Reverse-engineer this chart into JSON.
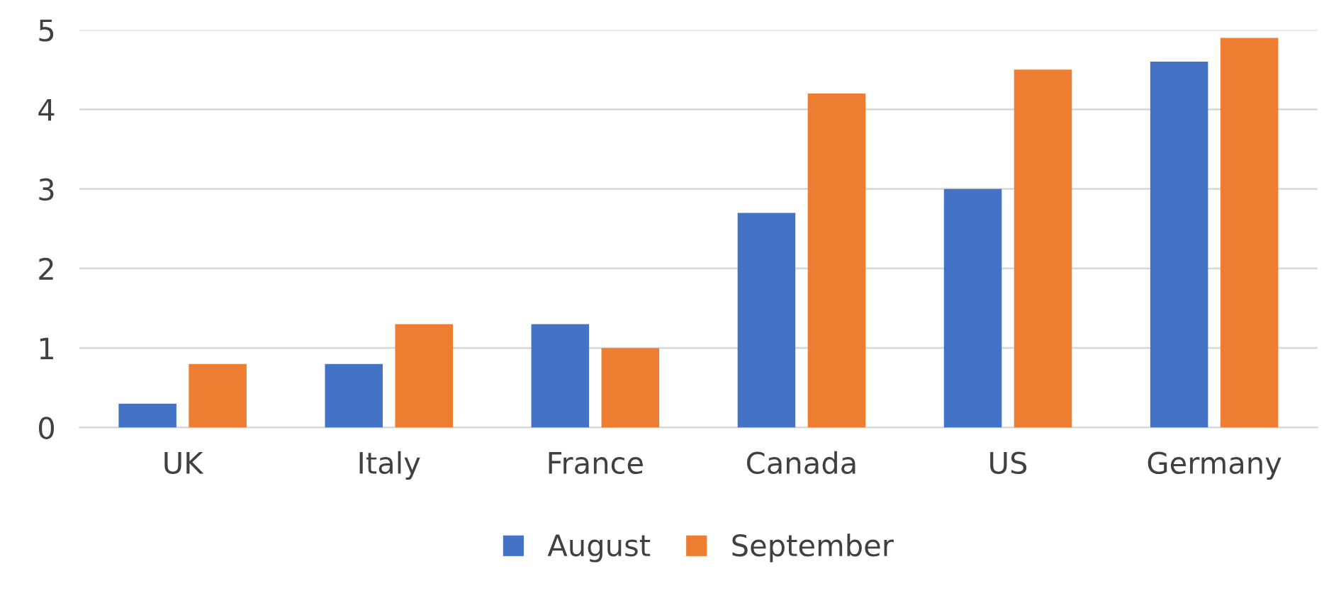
{
  "chart_data": {
    "type": "bar",
    "categories": [
      "UK",
      "Italy",
      "France",
      "Canada",
      "US",
      "Germany"
    ],
    "series": [
      {
        "name": "August",
        "color": "#4472c4",
        "values": [
          0.3,
          0.8,
          1.3,
          2.7,
          3.0,
          4.6
        ]
      },
      {
        "name": "September",
        "color": "#ed7d31",
        "values": [
          0.8,
          1.3,
          1.0,
          4.2,
          4.5,
          4.9
        ]
      }
    ],
    "ylim": [
      0,
      5
    ],
    "yticks": [
      0,
      1,
      2,
      3,
      4,
      5
    ],
    "grid": "y",
    "legend": "bottom"
  }
}
